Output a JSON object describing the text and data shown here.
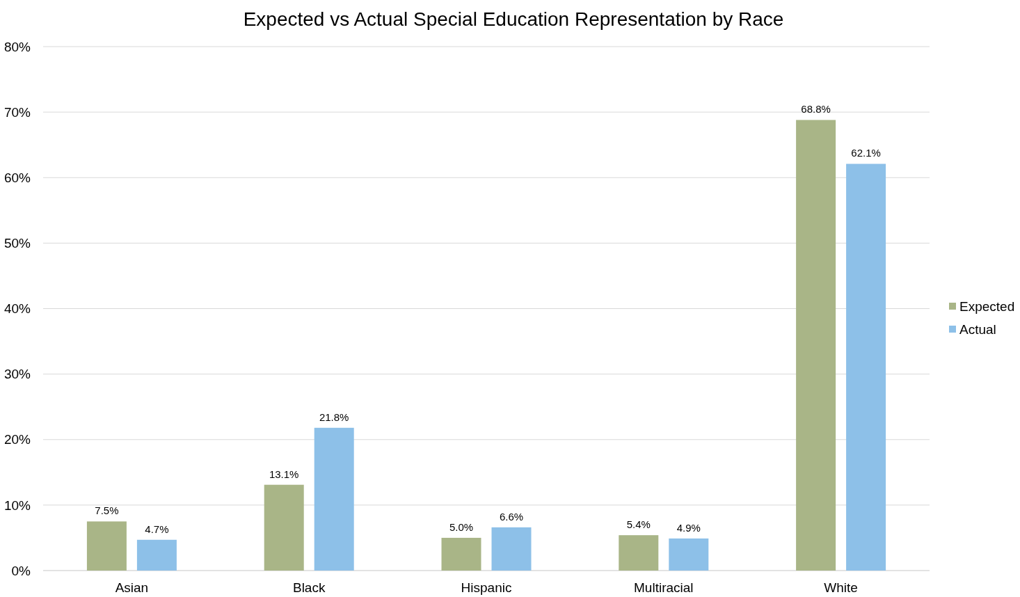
{
  "chart_data": {
    "type": "bar",
    "title": "Expected vs Actual Special Education Representation by Race",
    "categories": [
      "Asian",
      "Black",
      "Hispanic",
      "Multiracial",
      "White"
    ],
    "series": [
      {
        "name": "Expected",
        "color": "#a9b587",
        "values": [
          7.5,
          13.1,
          5.0,
          5.4,
          68.8
        ],
        "value_labels": [
          "7.5%",
          "13.1%",
          "5.0%",
          "5.4%",
          "68.8%"
        ]
      },
      {
        "name": "Actual",
        "color": "#8dc0e8",
        "values": [
          4.7,
          21.8,
          6.6,
          4.9,
          62.1
        ],
        "value_labels": [
          "4.7%",
          "21.8%",
          "6.6%",
          "4.9%",
          "62.1%"
        ]
      }
    ],
    "ylim": [
      0,
      80
    ],
    "yticks": [
      {
        "value": 0,
        "label": "0%"
      },
      {
        "value": 10,
        "label": "10%"
      },
      {
        "value": 20,
        "label": "20%"
      },
      {
        "value": 30,
        "label": "30%"
      },
      {
        "value": 40,
        "label": "40%"
      },
      {
        "value": 50,
        "label": "50%"
      },
      {
        "value": 60,
        "label": "60%"
      },
      {
        "value": 70,
        "label": "70%"
      },
      {
        "value": 80,
        "label": "80%"
      }
    ],
    "grid": "y",
    "legend": "right"
  }
}
